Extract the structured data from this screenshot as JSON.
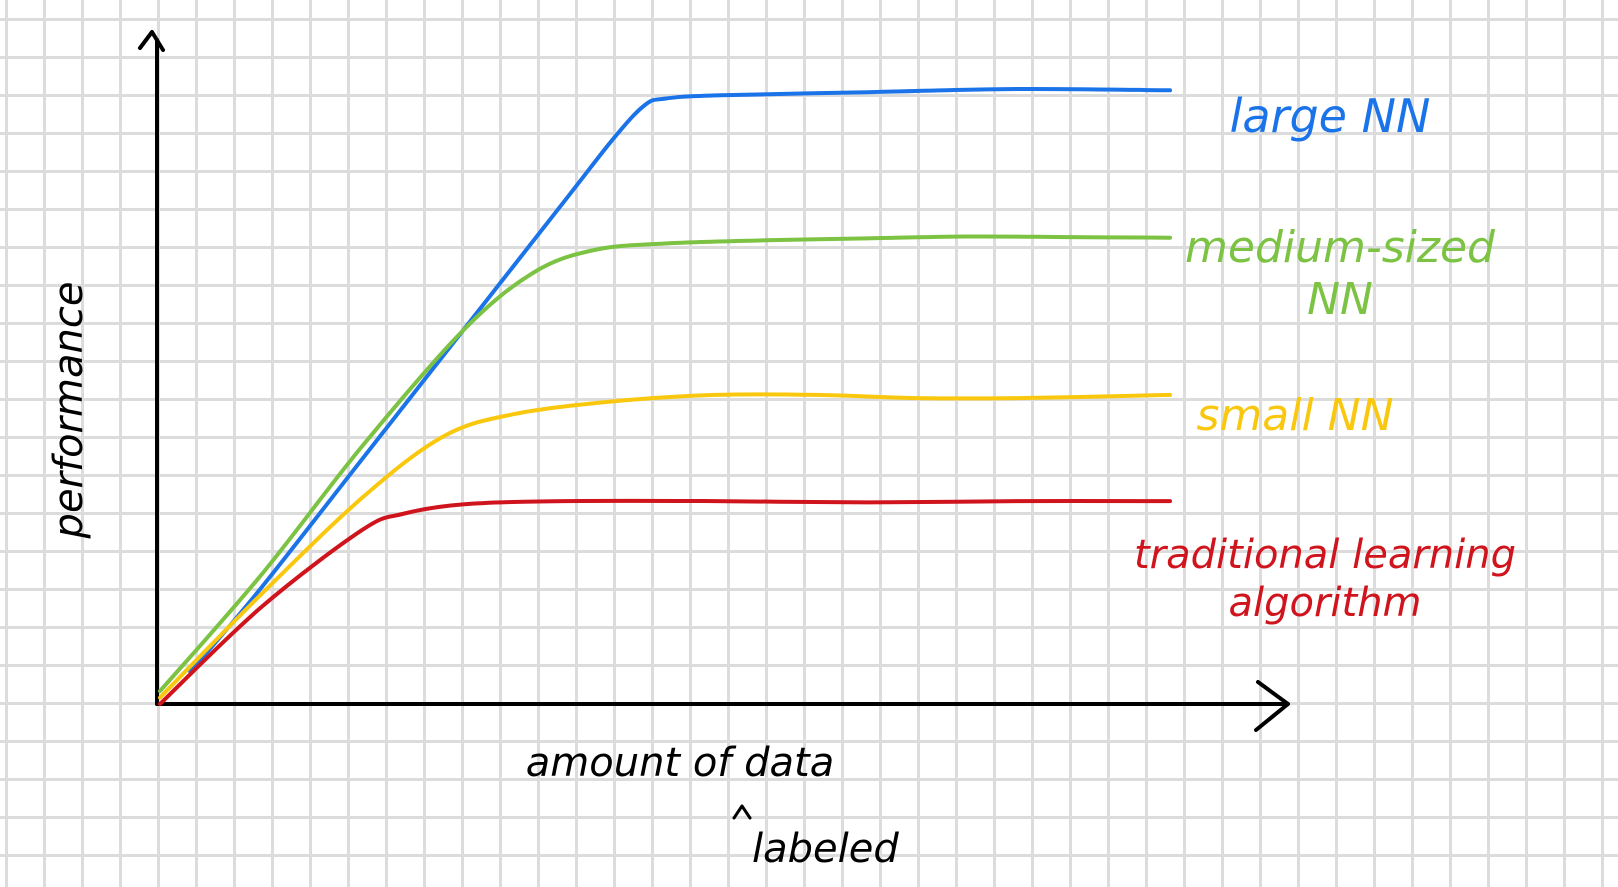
{
  "chart_data": {
    "type": "line",
    "title": "",
    "xlabel": "amount of data",
    "xlabel_note": "labeled",
    "ylabel": "performance",
    "xlim": [
      0,
      100
    ],
    "ylim": [
      0,
      100
    ],
    "grid": true,
    "legend": "inline labels at right end of each line",
    "series": [
      {
        "name": "large NN",
        "label_lines": [
          "large NN"
        ],
        "color": "#1a73e8",
        "x": [
          3,
          10,
          20,
          30,
          40,
          45,
          48,
          50,
          55,
          70,
          85,
          100
        ],
        "y": [
          5,
          18,
          38,
          58,
          78,
          88,
          93,
          94,
          94.5,
          95,
          95.5,
          95.3
        ]
      },
      {
        "name": "medium-sized NN",
        "label_lines": [
          "medium-sized",
          "NN"
        ],
        "color": "#7cc243",
        "x": [
          0,
          10,
          20,
          30,
          37,
          43,
          50,
          60,
          70,
          80,
          90,
          100
        ],
        "y": [
          2,
          20,
          40,
          58,
          67,
          70.5,
          71.5,
          72,
          72.3,
          72.6,
          72.5,
          72.4
        ]
      },
      {
        "name": "small NN",
        "label_lines": [
          "small NN"
        ],
        "color": "#f9c80e",
        "x": [
          0,
          10,
          20,
          28,
          35,
          45,
          55,
          65,
          75,
          85,
          100
        ],
        "y": [
          1,
          17,
          32,
          41.5,
          45,
          47,
          48,
          48,
          47.5,
          47.5,
          48
        ]
      },
      {
        "name": "traditional learning algorithm",
        "label_lines": [
          "traditional learning",
          "algorithm"
        ],
        "color": "#d0141d",
        "x": [
          0,
          10,
          20,
          24,
          30,
          40,
          55,
          70,
          85,
          100
        ],
        "y": [
          0,
          15,
          27,
          29.5,
          31,
          31.5,
          31.5,
          31.3,
          31.5,
          31.5
        ]
      }
    ]
  }
}
